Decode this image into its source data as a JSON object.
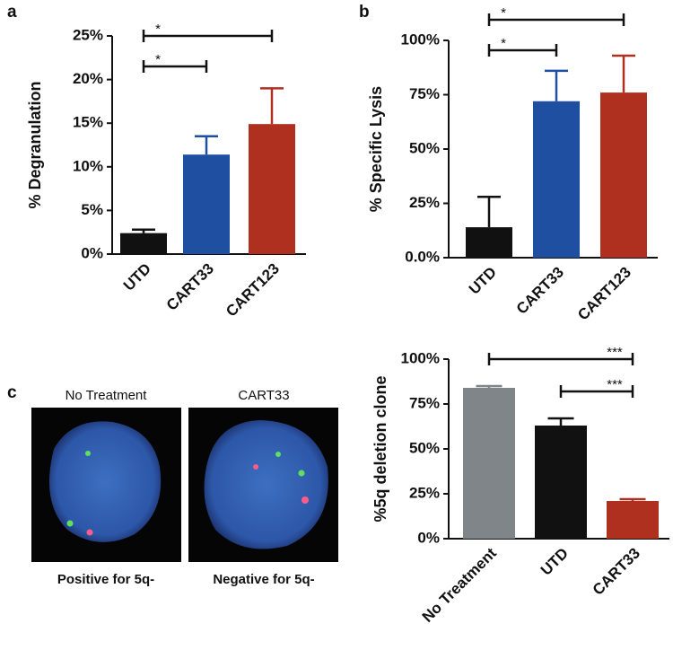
{
  "chart_data": [
    {
      "type": "bar",
      "panel_label": "a",
      "ylabel": "% Degranulation",
      "categories": [
        "UTD",
        "CART33",
        "CART123"
      ],
      "values": [
        2.4,
        11.4,
        14.9
      ],
      "errors": [
        0.4,
        2.1,
        4.1
      ],
      "colors": [
        "#111111",
        "#1f4fa0",
        "#b03020"
      ],
      "ylim": [
        0,
        25
      ],
      "yticks": [
        {
          "value": 0,
          "label": "0%"
        },
        {
          "value": 5,
          "label": "5%"
        },
        {
          "value": 10,
          "label": "10%"
        },
        {
          "value": 15,
          "label": "15%"
        },
        {
          "value": 20,
          "label": "20%"
        },
        {
          "value": 25,
          "label": "25%"
        }
      ],
      "annotations": [
        {
          "from": "UTD",
          "to": "CART123",
          "label": "*"
        },
        {
          "from": "UTD",
          "to": "CART33",
          "label": "*"
        }
      ]
    },
    {
      "type": "bar",
      "panel_label": "b",
      "ylabel": "% Specific Lysis",
      "categories": [
        "UTD",
        "CART33",
        "CART123"
      ],
      "values": [
        14,
        72,
        76
      ],
      "errors": [
        14,
        14,
        17
      ],
      "colors": [
        "#111111",
        "#1f4fa0",
        "#b03020"
      ],
      "ylim": [
        0,
        100
      ],
      "yticks": [
        {
          "value": 0,
          "label": "0.0%"
        },
        {
          "value": 25,
          "label": "25%"
        },
        {
          "value": 50,
          "label": "50%"
        },
        {
          "value": 75,
          "label": "75%"
        },
        {
          "value": 100,
          "label": "100%"
        }
      ],
      "annotations": [
        {
          "from": "UTD",
          "to": "CART123",
          "label": "*"
        },
        {
          "from": "UTD",
          "to": "CART33",
          "label": "*"
        }
      ]
    },
    {
      "type": "bar",
      "panel_label": "c",
      "ylabel": "%5q deletion clone",
      "categories": [
        "No Treatment",
        "UTD",
        "CART33"
      ],
      "values": [
        84,
        63,
        21
      ],
      "errors": [
        1,
        4,
        1
      ],
      "colors": [
        "#7f8588",
        "#111111",
        "#b03020"
      ],
      "ylim": [
        0,
        100
      ],
      "yticks": [
        {
          "value": 0,
          "label": "0%"
        },
        {
          "value": 25,
          "label": "25%"
        },
        {
          "value": 50,
          "label": "50%"
        },
        {
          "value": 75,
          "label": "75%"
        },
        {
          "value": 100,
          "label": "100%"
        }
      ],
      "annotations": [
        {
          "from": "No Treatment",
          "to": "CART33",
          "label": "***"
        },
        {
          "from": "UTD",
          "to": "CART33",
          "label": "***"
        }
      ]
    }
  ],
  "images": [
    {
      "title": "No Treatment",
      "caption": "Positive for 5q-"
    },
    {
      "title": "CART33",
      "caption": "Negative for 5q-"
    }
  ]
}
